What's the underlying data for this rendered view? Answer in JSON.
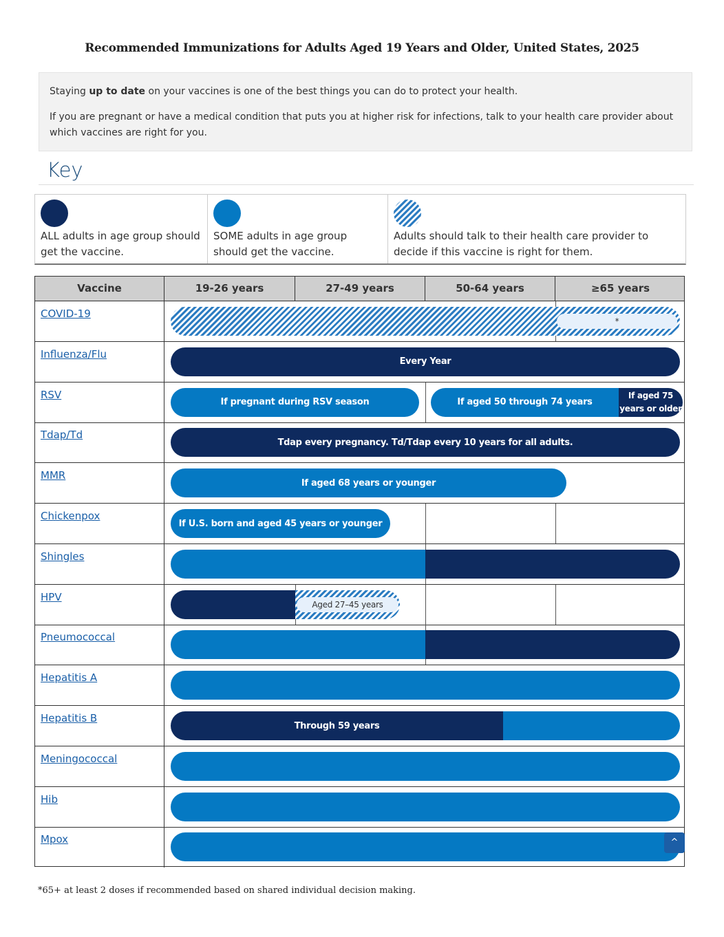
{
  "title": "Recommended Immunizations for Adults Aged 19 Years and Older, United States, 2025",
  "intro": {
    "p1_pre": "Staying ",
    "p1_bold": "up to date",
    "p1_post": " on your vaccines is one of the best things you can do to protect your health.",
    "p2": "If you are pregnant or have a medical condition that puts you at higher risk for infections, talk to your health care provider about which vaccines are right for you."
  },
  "key": {
    "heading": "Key",
    "all": "ALL adults in age group should get the vaccine.",
    "some": "SOME adults in age group should get the vaccine.",
    "talk": "Adults should talk to their health care provider to decide if this vaccine is right for them."
  },
  "table": {
    "headers": [
      "Vaccine",
      "19-26 years",
      "27-49 years",
      "50-64 years",
      "≥65 years"
    ],
    "vaccines": [
      "COVID-19",
      "Influenza/Flu",
      "RSV",
      "Tdap/Td",
      "MMR",
      "Chickenpox",
      "Shingles",
      "HPV",
      "Pneumococcal",
      "Hepatitis A",
      "Hepatitis B",
      "Meningococcal",
      "Hib",
      "Mpox"
    ],
    "labels": {
      "covid": "*",
      "flu": "Every Year",
      "rsv1": "If pregnant during RSV season",
      "rsv2": "If aged 50 through 74 years",
      "rsv3": "If aged 75 years or older",
      "tdap": "Tdap every pregnancy. Td/Tdap every 10 years for all adults.",
      "mmr": "If aged 68 years or younger",
      "chickenpox": "If U.S. born and aged 45 years or younger",
      "hpv": "Aged 27–45 years",
      "hepb": "Through 59 years"
    }
  },
  "footnote": "*65+ at least 2 doses if recommended based on shared individual decision making.",
  "scroll_top": "^",
  "colors": {
    "dark": "#0e2a5e",
    "light": "#0579c3"
  }
}
